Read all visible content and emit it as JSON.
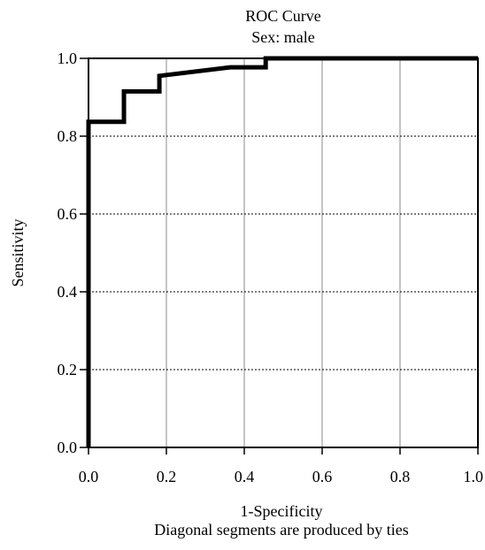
{
  "chart_data": {
    "type": "line",
    "title": "ROC Curve",
    "subtitle": "Sex: male",
    "xlabel": "1-Specificity",
    "ylabel": "Sensitivity",
    "footnote": "Diagonal segments are produced by ties",
    "xlim": [
      0,
      1
    ],
    "ylim": [
      0,
      1
    ],
    "x_ticks": [
      "0.0",
      "0.2",
      "0.4",
      "0.6",
      "0.8",
      "1.0"
    ],
    "y_ticks": [
      "0.0",
      "0.2",
      "0.4",
      "0.6",
      "0.8",
      "1.0"
    ],
    "grid": {
      "x_major": [
        0.2,
        0.4,
        0.6,
        0.8
      ],
      "y_major": [
        0.2,
        0.4,
        0.6,
        0.8
      ]
    },
    "series": [
      {
        "x": [
          0,
          0,
          0.091,
          0.091,
          0.182,
          0.182,
          0.364,
          0.455,
          0.455,
          1.0
        ],
        "y": [
          0,
          0.837,
          0.837,
          0.915,
          0.915,
          0.955,
          0.977,
          0.977,
          1.0,
          1.0
        ],
        "color": "#000000"
      }
    ]
  }
}
